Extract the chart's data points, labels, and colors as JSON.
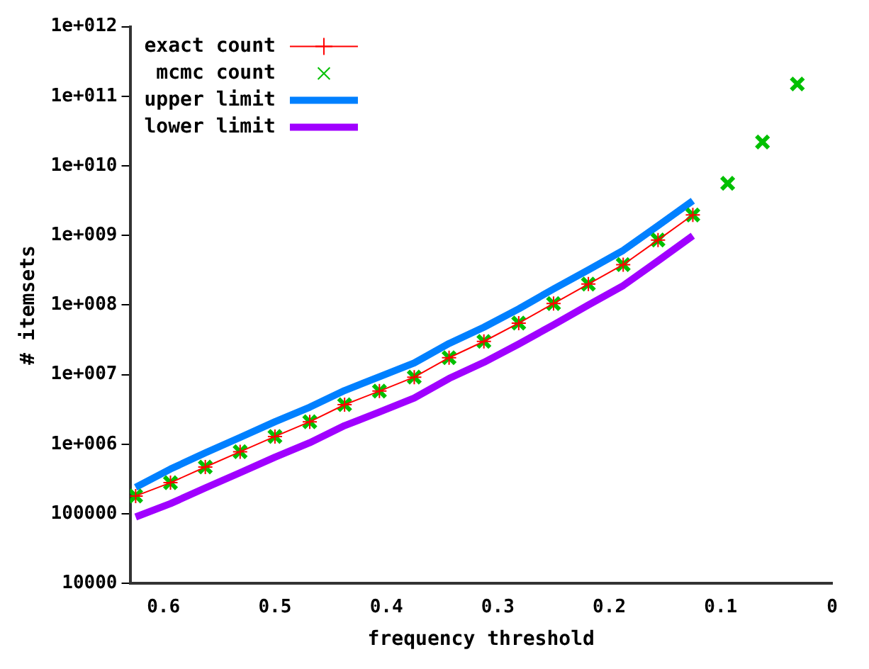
{
  "chart_data": {
    "type": "line",
    "xlabel": "frequency threshold",
    "ylabel": "# itemsets",
    "x": [
      0.625,
      0.59375,
      0.5625,
      0.53125,
      0.5,
      0.46875,
      0.4375,
      0.40625,
      0.375,
      0.34375,
      0.3125,
      0.28125,
      0.25,
      0.21875,
      0.1875,
      0.15625,
      0.125,
      0.09375,
      0.0625,
      0.03125
    ],
    "series": [
      {
        "name": "exact count",
        "type": "line",
        "color": "#ff0000",
        "marker": "cross",
        "values": [
          180000,
          280000,
          470000,
          780000,
          1290000,
          2100000,
          3700000,
          5800000,
          9200000,
          17500000,
          30000000,
          55000000,
          105000000,
          200000000,
          380000000,
          860000000,
          1970000000,
          null,
          null,
          null
        ]
      },
      {
        "name": "mcmc count",
        "type": "scatter",
        "color": "#00c000",
        "marker": "cross",
        "values": [
          180000,
          280000,
          470000,
          780000,
          1290000,
          2100000,
          3700000,
          5800000,
          9200000,
          17500000,
          30000000,
          55000000,
          105000000,
          200000000,
          380000000,
          860000000,
          1970000000,
          5600000000,
          22000000000,
          150000000000
        ]
      },
      {
        "name": "upper limit",
        "type": "line",
        "color": "#0080ff",
        "marker": "none",
        "values": [
          240000,
          440000,
          750000,
          1250000,
          2100000,
          3400000,
          5900000,
          9300000,
          14700000,
          28000000,
          48000000,
          88000000,
          170000000,
          320000000,
          610000000,
          1380000000,
          3150000000,
          null,
          null,
          null
        ]
      },
      {
        "name": "lower limit",
        "type": "line",
        "color": "#a000ff",
        "marker": "none",
        "values": [
          90000,
          140000,
          235000,
          390000,
          650000,
          1050000,
          1850000,
          2900000,
          4600000,
          8800000,
          15000000,
          27500000,
          52000000,
          100000000,
          190000000,
          430000000,
          990000000,
          null,
          null,
          null
        ]
      }
    ],
    "log": "y",
    "xlim": [
      0.63,
      0
    ],
    "xticks": [
      0.6,
      0.5,
      0.4,
      0.3,
      0.2,
      0.1,
      0
    ],
    "ylim": [
      10000,
      1000000000000
    ],
    "yticks": [
      10000,
      100000,
      {
        "value": 1000000,
        "label": "1e+006"
      },
      {
        "value": 10000000,
        "label": "1e+007"
      },
      {
        "value": 100000000,
        "label": "1e+008"
      },
      {
        "value": 1000000000,
        "label": "1e+009"
      },
      {
        "value": 10000000000,
        "label": "1e+010"
      },
      {
        "value": 100000000000,
        "label": "1e+011"
      },
      {
        "value": 1000000000000,
        "label": "1e+012"
      }
    ],
    "grid": false,
    "legend": "top left"
  }
}
